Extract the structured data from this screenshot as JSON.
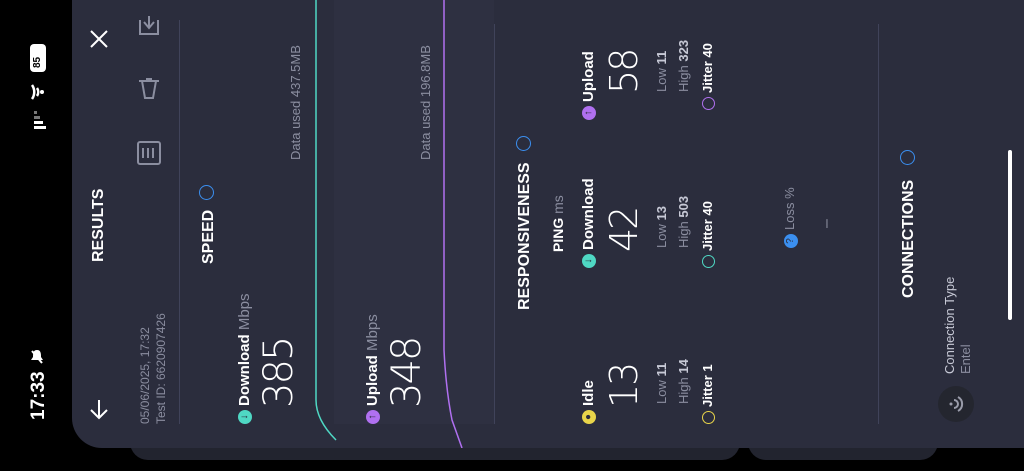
{
  "status_bar": {
    "time": "17:33",
    "battery": "85"
  },
  "results": {
    "title": "RESULTS",
    "date": "05/06/2025, 17:32",
    "test_id": "Test ID: 6620907426"
  },
  "speed": {
    "title": "SPEED",
    "download_label": "Download",
    "download_unit": "Mbps",
    "download_value": "385",
    "download_data": "Data used 437.5MB",
    "upload_label": "Upload",
    "upload_unit": "Mbps",
    "upload_value": "348",
    "upload_data": "Data used 196.8MB"
  },
  "responsiveness": {
    "title": "RESPONSIVENESS",
    "ping_label": "PING",
    "ping_unit": "ms",
    "idle": {
      "label": "Idle",
      "value": "13",
      "low_label": "Low",
      "low": "11",
      "high_label": "High",
      "high": "14",
      "jitter_label": "Jitter",
      "jitter": "1"
    },
    "download": {
      "label": "Download",
      "value": "42",
      "low_label": "Low",
      "low": "13",
      "high_label": "High",
      "high": "503",
      "jitter_label": "Jitter",
      "jitter": "40"
    },
    "upload": {
      "label": "Upload",
      "value": "58",
      "low_label": "Low",
      "low": "11",
      "high_label": "High",
      "high": "323",
      "jitter_label": "Jitter",
      "jitter": "40"
    },
    "loss_label": "Loss %",
    "loss_value": "–"
  },
  "connections": {
    "title": "CONNECTIONS",
    "type_label": "Connection Type",
    "type_value": "Entel"
  },
  "colors": {
    "download": "#4fd8c4",
    "upload": "#b070f0",
    "idle": "#e8d44a",
    "info": "#3b8ff0"
  },
  "icons": [
    "signal-icon",
    "wifi-icon",
    "battery-icon",
    "mute-icon",
    "back-arrow-icon",
    "close-icon",
    "share-icon",
    "delete-icon",
    "list-icon",
    "info-icon",
    "wifi-circle-icon"
  ]
}
